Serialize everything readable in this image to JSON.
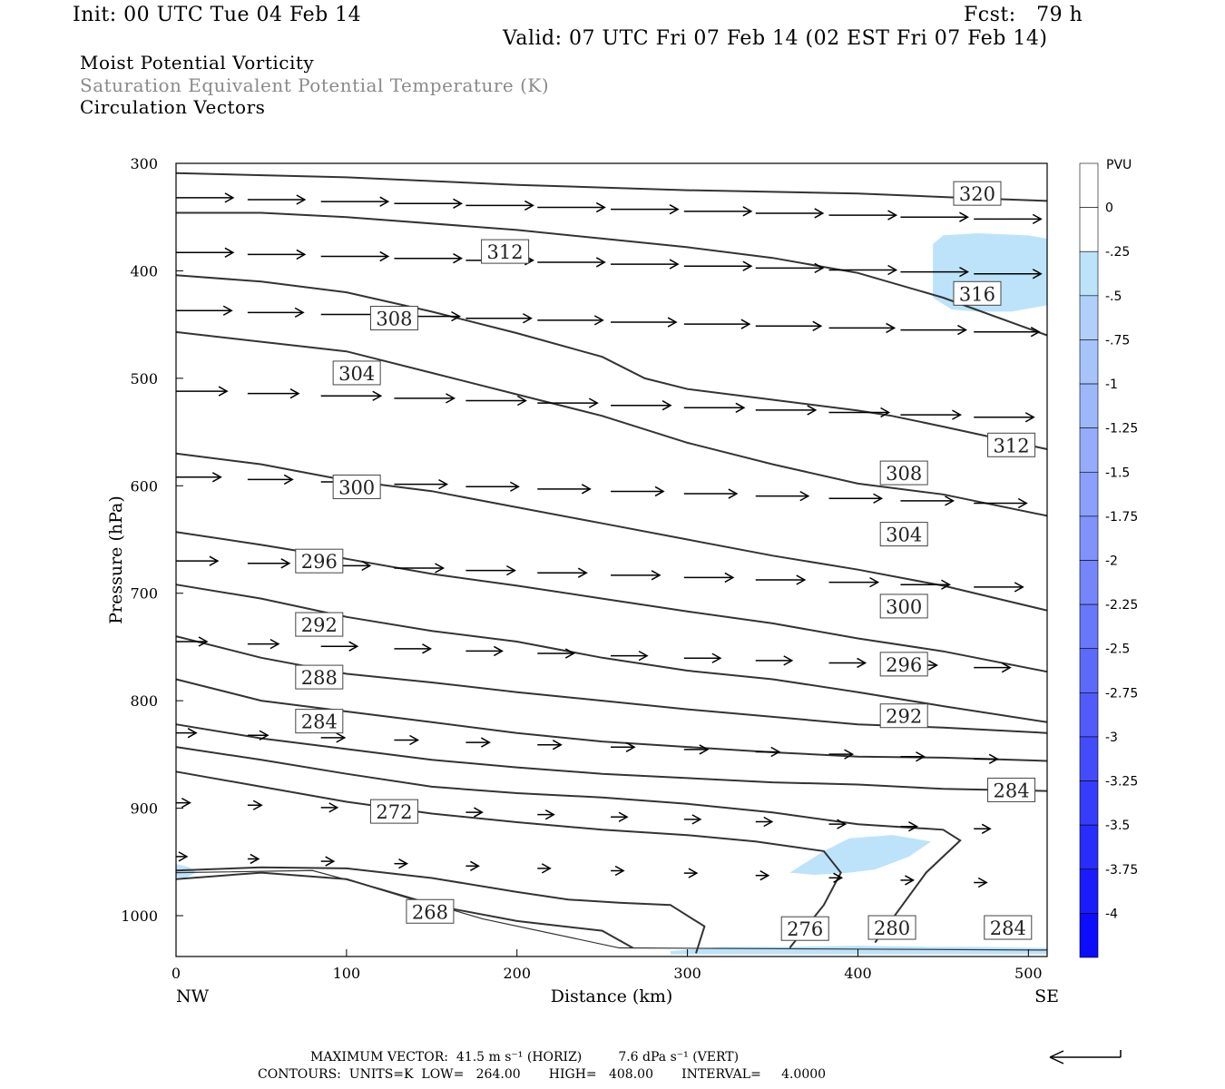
{
  "header": {
    "init": "Init: 00 UTC Tue 04 Feb 14",
    "fcst": "Fcst:   79 h",
    "valid": "Valid: 07 UTC Fri 07 Feb 14 (02 EST Fri 07 Feb 14)",
    "title1": "Moist Potential Vorticity",
    "title2": "Saturation Equivalent Potential Temperature (K)",
    "title3": "Circulation Vectors"
  },
  "footer": {
    "max_vector": "MAXIMUM VECTOR:  41.5 m s⁻¹ (HORIZ)         7.6 dPa s⁻¹ (VERT)",
    "contours": "CONTOURS:  UNITS=K  LOW=   264.00       HIGH=   408.00       INTERVAL=     4.0000"
  },
  "colors": {
    "contour": "#333333",
    "vector": "#000000",
    "mpv_fill": "#bde3fa"
  },
  "chart_data": {
    "type": "line",
    "title": "Moist Potential Vorticity / Saturation Equivalent Potential Temperature (K) / Circulation Vectors",
    "xlabel": "Distance (km)",
    "ylabel": "Pressure (hPa)",
    "x_end_labels": [
      "NW",
      "SE"
    ],
    "xlim": [
      0,
      511
    ],
    "ylim": [
      1038,
      300
    ],
    "xticks": [
      0,
      100,
      200,
      300,
      400,
      500
    ],
    "yticks": [
      300,
      400,
      500,
      600,
      700,
      800,
      900,
      1000
    ],
    "contour_interval": 4,
    "series": [
      {
        "name": "320",
        "x": [
          0,
          100,
          200,
          300,
          400,
          460,
          511
        ],
        "y": [
          309,
          313,
          320,
          325,
          328,
          332,
          335
        ]
      },
      {
        "name": "316",
        "x": [
          0,
          50,
          100,
          200,
          250,
          300,
          350,
          400,
          450,
          511
        ],
        "y": [
          346,
          346,
          350,
          362,
          370,
          378,
          388,
          402,
          425,
          460
        ]
      },
      {
        "name": "312",
        "x": [
          0,
          50,
          100,
          150,
          200,
          250,
          275,
          300,
          350,
          400,
          420,
          450,
          511
        ],
        "y": [
          404,
          410,
          420,
          438,
          458,
          480,
          500,
          510,
          520,
          530,
          535,
          545,
          566
        ]
      },
      {
        "name": "308",
        "x": [
          0,
          50,
          100,
          150,
          200,
          250,
          300,
          350,
          400,
          450,
          511
        ],
        "y": [
          457,
          466,
          475,
          495,
          515,
          535,
          560,
          580,
          598,
          608,
          628
        ]
      },
      {
        "name": "304",
        "x": [
          0,
          50,
          100,
          150,
          200,
          250,
          300,
          350,
          400,
          450,
          511
        ],
        "y": [
          570,
          580,
          595,
          605,
          620,
          635,
          650,
          665,
          678,
          693,
          716
        ]
      },
      {
        "name": "300",
        "x": [
          0,
          50,
          100,
          150,
          200,
          250,
          300,
          350,
          400,
          450,
          511
        ],
        "y": [
          643,
          655,
          668,
          682,
          693,
          705,
          717,
          728,
          742,
          754,
          773
        ]
      },
      {
        "name": "296",
        "x": [
          0,
          50,
          100,
          150,
          200,
          250,
          300,
          350,
          400,
          450,
          511
        ],
        "y": [
          692,
          705,
          722,
          735,
          745,
          760,
          772,
          780,
          792,
          805,
          820
        ]
      },
      {
        "name": "292",
        "x": [
          0,
          50,
          100,
          150,
          200,
          250,
          300,
          350,
          400,
          450,
          511
        ],
        "y": [
          740,
          760,
          775,
          783,
          792,
          800,
          808,
          815,
          822,
          825,
          830
        ]
      },
      {
        "name": "288",
        "x": [
          0,
          50,
          100,
          150,
          200,
          250,
          300,
          350,
          400,
          450,
          511
        ],
        "y": [
          780,
          800,
          810,
          820,
          830,
          838,
          843,
          848,
          852,
          853,
          856
        ]
      },
      {
        "name": "284",
        "x": [
          0,
          50,
          100,
          150,
          200,
          250,
          300,
          350,
          400,
          450,
          511
        ],
        "y": [
          822,
          835,
          845,
          855,
          862,
          868,
          872,
          876,
          878,
          882,
          884
        ]
      },
      {
        "name": "280",
        "x": [
          0,
          50,
          100,
          150,
          200,
          250,
          300,
          350,
          400,
          450,
          460,
          440,
          410
        ],
        "y": [
          843,
          855,
          868,
          880,
          886,
          890,
          896,
          904,
          915,
          920,
          930,
          960,
          1025
        ]
      },
      {
        "name": "276",
        "x": [
          0,
          50,
          100,
          150,
          200,
          250,
          300,
          340,
          380,
          390,
          380,
          360
        ],
        "y": [
          866,
          880,
          894,
          905,
          913,
          920,
          925,
          931,
          940,
          960,
          990,
          1030
        ]
      },
      {
        "name": "272",
        "x": [
          0,
          50,
          100,
          150,
          200,
          230,
          260,
          290,
          310,
          305
        ],
        "y": [
          958,
          955,
          956,
          965,
          978,
          985,
          988,
          990,
          1010,
          1035
        ]
      },
      {
        "name": "268",
        "x": [
          0,
          50,
          100,
          150,
          200,
          250,
          268
        ],
        "y": [
          966,
          960,
          966,
          990,
          1005,
          1014,
          1030
        ]
      }
    ],
    "mpv_shaded_levels": [
      "-0.25 to 0"
    ],
    "colorbar": {
      "label": "PVU",
      "ticks": [
        "0",
        "-.25",
        "-.5",
        "-.75",
        "-1",
        "-1.25",
        "-1.5",
        "-1.75",
        "-2",
        "-2.25",
        "-2.5",
        "-2.75",
        "-3",
        "-3.25",
        "-3.5",
        "-3.75",
        "-4"
      ],
      "colors": [
        "#ffffff",
        "#ffffff",
        "#bde3fa",
        "#b0d0fa",
        "#a6c4fa",
        "#9db8fa",
        "#94acfa",
        "#8aa0fa",
        "#7f93fa",
        "#7486fa",
        "#6878fa",
        "#5c6afa",
        "#505bfa",
        "#434cfa",
        "#363cfb",
        "#282dfc",
        "#1a1cfd",
        "#0c0cfe"
      ]
    }
  }
}
